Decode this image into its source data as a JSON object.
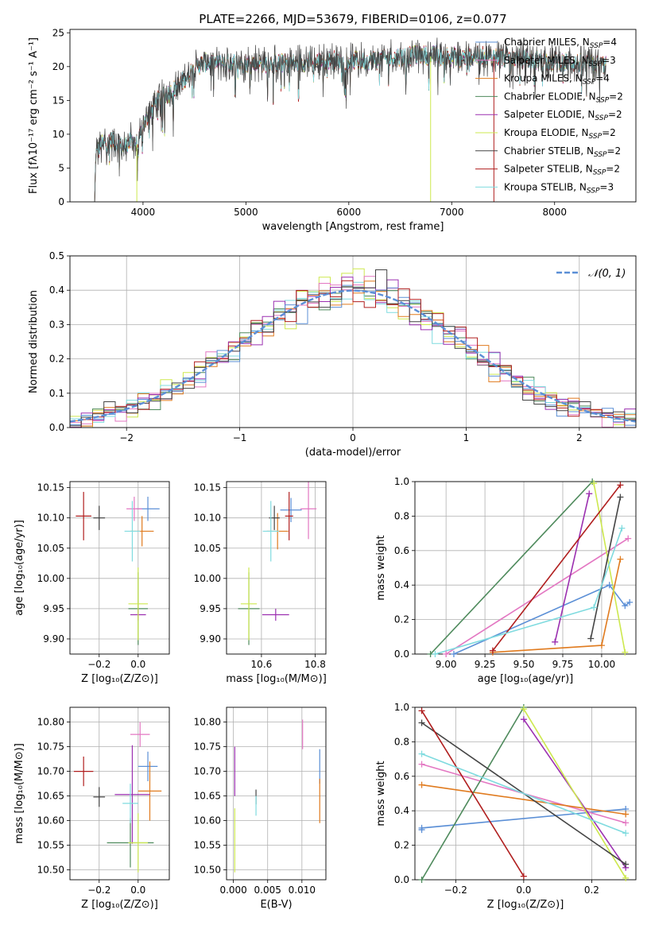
{
  "title": "PLATE=2266, MJD=53679, FIBERID=0106, z=0.077",
  "colors": {
    "Chabrier MILES": "#5b8fd6",
    "Salpeter MILES": "#e377c2",
    "Kroupa MILES": "#e07b1f",
    "Chabrier ELODIE": "#4e8a5c",
    "Salpeter ELODIE": "#9b2fb0",
    "Kroupa ELODIE": "#cde84f",
    "Chabrier STELIB": "#444444",
    "Salpeter STELIB": "#b01e1e",
    "Kroupa STELIB": "#7fdbdf"
  },
  "chart_data": [
    {
      "id": "spectrum",
      "type": "line",
      "xlabel": "wavelength [Angstrom, rest frame]",
      "ylabel": "Flux [fλ10⁻¹⁷ erg cm⁻² s⁻¹ A⁻¹]",
      "xlim": [
        3290,
        8790
      ],
      "ylim": [
        0,
        25.5
      ],
      "xticks": [
        4000,
        5000,
        6000,
        7000,
        8000
      ],
      "yticks": [
        0,
        5,
        10,
        15,
        20,
        25
      ],
      "legend_position": "right",
      "legend": [
        {
          "model": "Chabrier MILES",
          "nssp": "4"
        },
        {
          "model": "Salpeter MILES",
          "nssp": "3"
        },
        {
          "model": "Kroupa MILES",
          "nssp": "4"
        },
        {
          "model": "Chabrier ELODIE",
          "nssp": "2"
        },
        {
          "model": "Salpeter ELODIE",
          "nssp": "2"
        },
        {
          "model": "Kroupa ELODIE",
          "nssp": "2"
        },
        {
          "model": "Chabrier STELIB",
          "nssp": "2"
        },
        {
          "model": "Salpeter STELIB",
          "nssp": "2"
        },
        {
          "model": "Kroupa STELIB",
          "nssp": "3"
        }
      ],
      "continuum": [
        [
          3530,
          0
        ],
        [
          3540,
          7
        ],
        [
          3600,
          8.5
        ],
        [
          3700,
          9
        ],
        [
          3800,
          8
        ],
        [
          3900,
          9
        ],
        [
          3950,
          8.5
        ],
        [
          4000,
          11
        ],
        [
          4100,
          14.5
        ],
        [
          4200,
          15.5
        ],
        [
          4300,
          16.5
        ],
        [
          4400,
          18
        ],
        [
          4500,
          20
        ],
        [
          4600,
          20.5
        ],
        [
          4800,
          20.5
        ],
        [
          5000,
          20.5
        ],
        [
          5200,
          20.5
        ],
        [
          5500,
          20.5
        ],
        [
          5800,
          21
        ],
        [
          6000,
          20.8
        ],
        [
          6300,
          21
        ],
        [
          6500,
          21.5
        ],
        [
          6800,
          21.7
        ],
        [
          7000,
          21.5
        ],
        [
          7400,
          21.5
        ],
        [
          7800,
          21
        ],
        [
          8200,
          20.5
        ],
        [
          8500,
          20.3
        ]
      ],
      "drops": [
        {
          "series": "Kroupa ELODIE",
          "x": 6795,
          "from": 21.5,
          "to": 0
        },
        {
          "series": "Salpeter STELIB",
          "x": 7410,
          "from": 21.5,
          "to": 0
        },
        {
          "series": "Kroupa ELODIE",
          "x": 3940,
          "from": 8.5,
          "to": 0
        }
      ]
    },
    {
      "id": "residuals",
      "type": "histogram",
      "xlabel": "(data-model)/error",
      "ylabel": "Normed distribution",
      "xlim": [
        -2.5,
        2.5
      ],
      "ylim": [
        0,
        0.5
      ],
      "xticks": [
        -2,
        -1,
        0,
        1,
        2
      ],
      "yticks": [
        0.0,
        0.1,
        0.2,
        0.3,
        0.4,
        0.5
      ],
      "grid": true,
      "reference_label": "𝒩(0, 1)",
      "reference_color": "#5b8fd6",
      "bin_width": 0.1
    },
    {
      "id": "age_vs_Z",
      "type": "scatter",
      "xlabel": "Z [log₁₀(Z/Z⊙)]",
      "ylabel": "age  [log₁₀(age/yr)]",
      "xlim": [
        -0.35,
        0.16
      ],
      "ylim": [
        9.875,
        10.16
      ],
      "xticks": [
        -0.2,
        0.0
      ],
      "yticks": [
        9.9,
        9.95,
        10.0,
        10.05,
        10.1,
        10.15
      ],
      "grid": true,
      "points": [
        {
          "series": "Chabrier MILES",
          "x": 0.05,
          "y": 10.115,
          "xerr": 0.06,
          "yerr": 0.02
        },
        {
          "series": "Salpeter MILES",
          "x": -0.02,
          "y": 10.115,
          "xerr": 0.04,
          "yerr": 0.02
        },
        {
          "series": "Kroupa MILES",
          "x": 0.02,
          "y": 10.078,
          "xerr": 0.06,
          "yerr": 0.025
        },
        {
          "series": "Chabrier ELODIE",
          "x": 0.0,
          "y": 9.95,
          "xerr": 0.05,
          "yerr": 0.06
        },
        {
          "series": "Salpeter ELODIE",
          "x": 0.0,
          "y": 9.94,
          "xerr": 0.04,
          "yerr": 0.01
        },
        {
          "series": "Kroupa ELODIE",
          "x": 0.0,
          "y": 9.958,
          "xerr": 0.05,
          "yerr": 0.06
        },
        {
          "series": "Chabrier STELIB",
          "x": -0.2,
          "y": 10.1,
          "xerr": 0.03,
          "yerr": 0.02
        },
        {
          "series": "Salpeter STELIB",
          "x": -0.28,
          "y": 10.103,
          "xerr": 0.04,
          "yerr": 0.04
        },
        {
          "series": "Kroupa STELIB",
          "x": -0.03,
          "y": 10.078,
          "xerr": 0.04,
          "yerr": 0.05
        }
      ]
    },
    {
      "id": "age_vs_mass",
      "type": "scatter",
      "xlabel": "mass [log₁₀(M/M⊙)]",
      "ylabel": "",
      "xlim": [
        10.47,
        10.84
      ],
      "ylim": [
        9.875,
        10.16
      ],
      "xticks": [
        10.6,
        10.8
      ],
      "yticks": [
        9.9,
        9.95,
        10.0,
        10.05,
        10.1,
        10.15
      ],
      "grid": true,
      "points": [
        {
          "series": "Chabrier MILES",
          "x": 10.71,
          "y": 10.113,
          "xerr": 0.04,
          "yerr": 0.02
        },
        {
          "series": "Salpeter MILES",
          "x": 10.775,
          "y": 10.115,
          "xerr": 0.03,
          "yerr": 0.05
        },
        {
          "series": "Kroupa MILES",
          "x": 10.66,
          "y": 10.078,
          "xerr": 0.04,
          "yerr": 0.03
        },
        {
          "series": "Chabrier ELODIE",
          "x": 10.553,
          "y": 9.95,
          "xerr": 0.04,
          "yerr": 0.06
        },
        {
          "series": "Salpeter ELODIE",
          "x": 10.653,
          "y": 9.94,
          "xerr": 0.05,
          "yerr": 0.01
        },
        {
          "series": "Kroupa ELODIE",
          "x": 10.553,
          "y": 9.958,
          "xerr": 0.03,
          "yerr": 0.06
        },
        {
          "series": "Chabrier STELIB",
          "x": 10.648,
          "y": 10.1,
          "xerr": 0.02,
          "yerr": 0.02
        },
        {
          "series": "Salpeter STELIB",
          "x": 10.703,
          "y": 10.103,
          "xerr": 0.015,
          "yerr": 0.04
        },
        {
          "series": "Kroupa STELIB",
          "x": 10.635,
          "y": 10.078,
          "xerr": 0.03,
          "yerr": 0.05
        }
      ]
    },
    {
      "id": "weight_vs_age",
      "type": "line",
      "xlabel": "age  [log₁₀(age/yr)]",
      "ylabel": "mass weight",
      "xlim": [
        8.8,
        10.22
      ],
      "ylim": [
        0,
        1
      ],
      "xticks": [
        9.0,
        9.25,
        9.5,
        9.75,
        10.0
      ],
      "yticks": [
        0.0,
        0.2,
        0.4,
        0.6,
        0.8,
        1.0
      ],
      "grid": true,
      "series": [
        {
          "name": "Chabrier MILES",
          "points": [
            [
              9.05,
              0.0
            ],
            [
              10.05,
              0.4
            ],
            [
              10.15,
              0.28
            ],
            [
              10.18,
              0.3
            ]
          ]
        },
        {
          "name": "Salpeter MILES",
          "points": [
            [
              9.0,
              0.0
            ],
            [
              10.17,
              0.67
            ]
          ]
        },
        {
          "name": "Kroupa MILES",
          "points": [
            [
              9.3,
              0.01
            ],
            [
              10.0,
              0.05
            ],
            [
              10.12,
              0.55
            ]
          ]
        },
        {
          "name": "Chabrier ELODIE",
          "points": [
            [
              8.9,
              0.0
            ],
            [
              9.94,
              1.0
            ]
          ]
        },
        {
          "name": "Salpeter ELODIE",
          "points": [
            [
              9.7,
              0.07
            ],
            [
              9.92,
              0.93
            ]
          ]
        },
        {
          "name": "Kroupa ELODIE",
          "points": [
            [
              9.95,
              0.99
            ],
            [
              10.15,
              0.01
            ]
          ]
        },
        {
          "name": "Chabrier STELIB",
          "points": [
            [
              9.93,
              0.09
            ],
            [
              10.12,
              0.91
            ]
          ]
        },
        {
          "name": "Salpeter STELIB",
          "points": [
            [
              9.3,
              0.02
            ],
            [
              10.12,
              0.98
            ]
          ]
        },
        {
          "name": "Kroupa STELIB",
          "points": [
            [
              8.93,
              0.0
            ],
            [
              9.95,
              0.27
            ],
            [
              10.13,
              0.73
            ]
          ]
        }
      ]
    },
    {
      "id": "mass_vs_Z",
      "type": "scatter",
      "xlabel": "Z [log₁₀(Z/Z⊙)]",
      "ylabel": "mass [log₁₀(M/M⊙)]",
      "xlim": [
        -0.35,
        0.16
      ],
      "ylim": [
        10.48,
        10.83
      ],
      "xticks": [
        -0.2,
        0.0
      ],
      "yticks": [
        10.5,
        10.55,
        10.6,
        10.65,
        10.7,
        10.75,
        10.8
      ],
      "grid": true,
      "points": [
        {
          "series": "Chabrier MILES",
          "x": 0.05,
          "y": 10.71,
          "xerr": 0.05,
          "yerr": 0.03
        },
        {
          "series": "Salpeter MILES",
          "x": 0.01,
          "y": 10.775,
          "xerr": 0.05,
          "yerr": 0.025
        },
        {
          "series": "Kroupa MILES",
          "x": 0.06,
          "y": 10.66,
          "xerr": 0.06,
          "yerr": 0.06
        },
        {
          "series": "Chabrier ELODIE",
          "x": -0.04,
          "y": 10.555,
          "xerr": 0.12,
          "yerr": 0.05
        },
        {
          "series": "Salpeter ELODIE",
          "x": -0.03,
          "y": 10.653,
          "xerr": 0.09,
          "yerr": 0.1
        },
        {
          "series": "Kroupa ELODIE",
          "x": 0.0,
          "y": 10.555,
          "xerr": 0.05,
          "yerr": 0.06
        },
        {
          "series": "Chabrier STELIB",
          "x": -0.2,
          "y": 10.648,
          "xerr": 0.03,
          "yerr": 0.02
        },
        {
          "series": "Salpeter STELIB",
          "x": -0.28,
          "y": 10.7,
          "xerr": 0.05,
          "yerr": 0.03
        },
        {
          "series": "Kroupa STELIB",
          "x": -0.04,
          "y": 10.635,
          "xerr": 0.04,
          "yerr": 0.04
        }
      ]
    },
    {
      "id": "mass_vs_ebv",
      "type": "scatter",
      "xlabel": "E(B-V)",
      "ylabel": "",
      "xlim": [
        -0.001,
        0.0135
      ],
      "ylim": [
        10.48,
        10.83
      ],
      "xticks": [
        0.0,
        0.005,
        0.01
      ],
      "xticklabels": [
        "0.000",
        "0.005",
        "0.010"
      ],
      "yticks": [
        10.5,
        10.55,
        10.6,
        10.65,
        10.7,
        10.75,
        10.8
      ],
      "grid": true,
      "points": [
        {
          "series": "Chabrier MILES",
          "x": 0.0126,
          "y": 10.71,
          "xerr": 0,
          "yerr": 0.035
        },
        {
          "series": "Salpeter MILES",
          "x": 0.0101,
          "y": 10.775,
          "xerr": 0,
          "yerr": 0.03
        },
        {
          "series": "Kroupa MILES",
          "x": 0.0126,
          "y": 10.64,
          "xerr": 0,
          "yerr": 0.045
        },
        {
          "series": "Salpeter ELODIE",
          "x": 0.0002,
          "y": 10.7,
          "xerr": 0,
          "yerr": 0.05
        },
        {
          "series": "Kroupa ELODIE",
          "x": 0.0002,
          "y": 10.56,
          "xerr": 0,
          "yerr": 0.065
        },
        {
          "series": "Chabrier STELIB",
          "x": 0.0033,
          "y": 10.648,
          "xerr": 0,
          "yerr": 0.015
        },
        {
          "series": "Kroupa STELIB",
          "x": 0.0033,
          "y": 10.63,
          "xerr": 0,
          "yerr": 0.02
        }
      ]
    },
    {
      "id": "weight_vs_Z",
      "type": "line",
      "xlabel": "Z [log₁₀(Z/Z⊙)]",
      "ylabel": "mass weight",
      "xlim": [
        -0.32,
        0.33
      ],
      "ylim": [
        0,
        1
      ],
      "xticks": [
        -0.2,
        0.0,
        0.2
      ],
      "yticks": [
        0.0,
        0.2,
        0.4,
        0.6,
        0.8,
        1.0
      ],
      "grid": true,
      "series": [
        {
          "name": "Chabrier MILES",
          "points": [
            [
              -0.3,
              0.29
            ],
            [
              -0.3,
              0.3
            ],
            [
              0.3,
              0.41
            ]
          ]
        },
        {
          "name": "Salpeter MILES",
          "points": [
            [
              -0.3,
              0.67
            ],
            [
              0.3,
              0.33
            ]
          ]
        },
        {
          "name": "Kroupa MILES",
          "points": [
            [
              -0.3,
              0.55
            ],
            [
              0.3,
              0.38
            ]
          ]
        },
        {
          "name": "Chabrier ELODIE",
          "points": [
            [
              -0.3,
              0.0
            ],
            [
              0.0,
              1.0
            ]
          ]
        },
        {
          "name": "Salpeter ELODIE",
          "points": [
            [
              0.0,
              0.93
            ],
            [
              0.3,
              0.07
            ]
          ]
        },
        {
          "name": "Kroupa ELODIE",
          "points": [
            [
              0.0,
              0.99
            ],
            [
              0.3,
              0.01
            ]
          ]
        },
        {
          "name": "Chabrier STELIB",
          "points": [
            [
              -0.3,
              0.91
            ],
            [
              0.3,
              0.09
            ]
          ]
        },
        {
          "name": "Salpeter STELIB",
          "points": [
            [
              -0.3,
              0.98
            ],
            [
              0.0,
              0.02
            ]
          ]
        },
        {
          "name": "Kroupa STELIB",
          "points": [
            [
              -0.3,
              0.73
            ],
            [
              0.3,
              0.27
            ]
          ]
        }
      ]
    }
  ]
}
